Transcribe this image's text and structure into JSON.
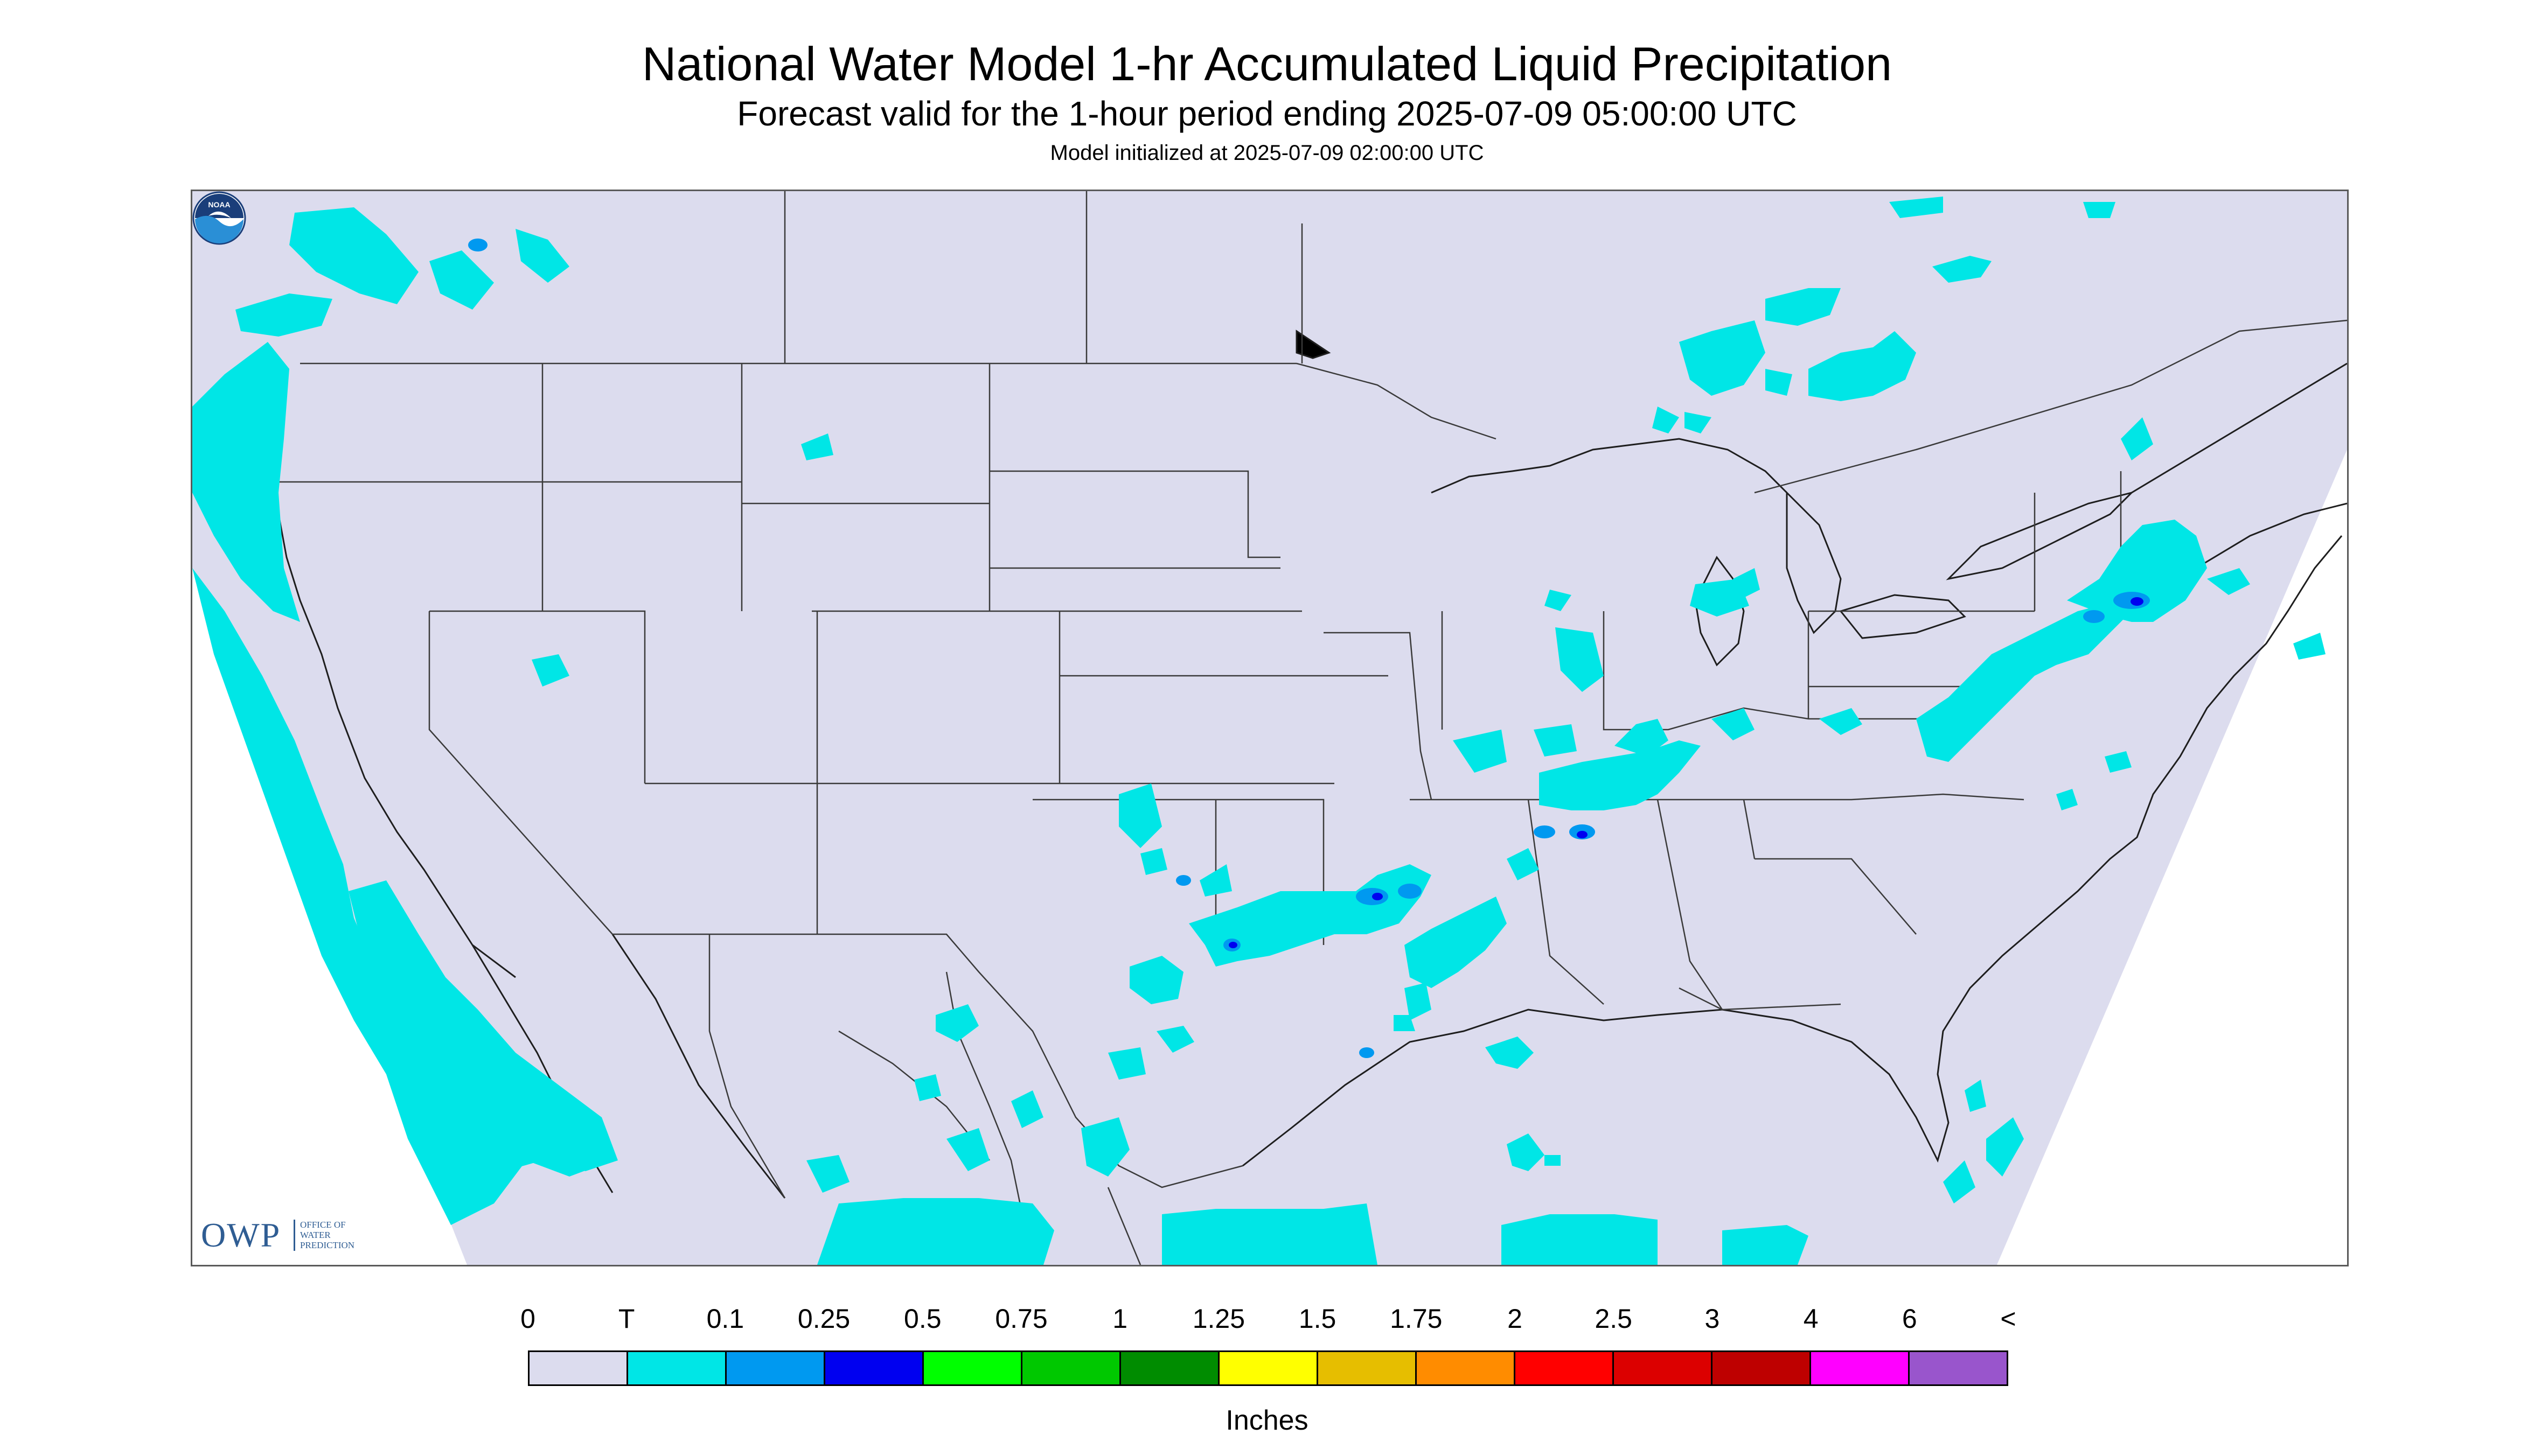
{
  "title": "National Water Model 1-hr Accumulated Liquid Precipitation",
  "subtitle": "Forecast valid for the 1-hour period ending 2025-07-09 05:00:00 UTC",
  "init_line": "Model initialized at 2025-07-09 02:00:00 UTC",
  "logo_left": {
    "big": "OWP",
    "small": [
      "OFFICE OF",
      "WATER",
      "PREDICTION"
    ]
  },
  "logo_right": {
    "text": "NOAA"
  },
  "legend": {
    "labels": [
      "0",
      "T",
      "0.1",
      "0.25",
      "0.5",
      "0.75",
      "1",
      "1.25",
      "1.5",
      "1.75",
      "2",
      "2.5",
      "3",
      "4",
      "6",
      "<"
    ],
    "colors": [
      "#dcdcee",
      "#00e6e6",
      "#0099f0",
      "#0000f0",
      "#00ff00",
      "#00c800",
      "#008c00",
      "#ffff00",
      "#e6be00",
      "#ff8c00",
      "#ff0000",
      "#dc0000",
      "#be0000",
      "#ff00ff",
      "#9955cc"
    ],
    "units": "Inches"
  },
  "colors": {
    "domain": "#dcdcee",
    "trace": "#00e6e6",
    "light_blue": "#0099f0",
    "blue": "#0000f0",
    "border": "#3a3a3a"
  }
}
